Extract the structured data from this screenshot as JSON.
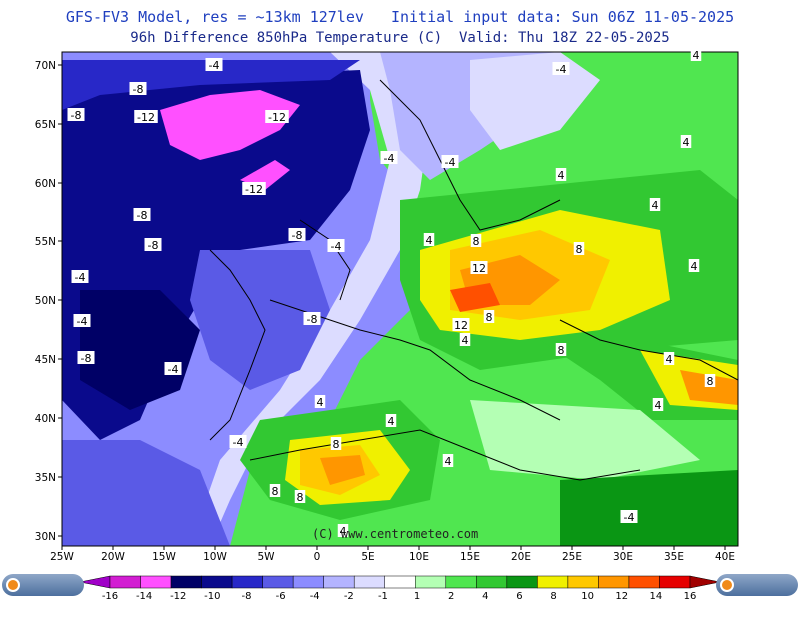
{
  "header": {
    "line1": "GFS-FV3 Model, res = ~13km 127lev   Initial input data: Sun 06Z 11-05-2025",
    "line2": "96h Difference 850hPa Temperature (C)  Valid: Thu 18Z 22-05-2025"
  },
  "credit": "(C) www.centrometeo.com",
  "brand": "centrometeo",
  "axes": {
    "lon": [
      "25W",
      "20W",
      "15W",
      "10W",
      "5W",
      "0",
      "5E",
      "10E",
      "15E",
      "20E",
      "25E",
      "30E",
      "35E",
      "40E"
    ],
    "lat": [
      "70N",
      "65N",
      "60N",
      "55N",
      "50N",
      "45N",
      "40N",
      "35N",
      "30N"
    ]
  },
  "contour_labels": [
    {
      "text": "-4"
    },
    {
      "text": "-8"
    },
    {
      "text": "-8"
    },
    {
      "text": "-12"
    },
    {
      "text": "-12"
    },
    {
      "text": "-12"
    },
    {
      "text": "-4"
    },
    {
      "text": "-4"
    },
    {
      "text": "-8"
    },
    {
      "text": "-8"
    },
    {
      "text": "-8"
    },
    {
      "text": "-4"
    },
    {
      "text": "-4"
    },
    {
      "text": "-4"
    },
    {
      "text": "-8"
    },
    {
      "text": "-8"
    },
    {
      "text": "-4"
    },
    {
      "text": "-4"
    },
    {
      "text": "-4"
    },
    {
      "text": "4"
    },
    {
      "text": "4"
    },
    {
      "text": "4"
    },
    {
      "text": "4"
    },
    {
      "text": "8"
    },
    {
      "text": "12"
    },
    {
      "text": "8"
    },
    {
      "text": "8"
    },
    {
      "text": "12"
    },
    {
      "text": "4"
    },
    {
      "text": "8"
    },
    {
      "text": "4"
    },
    {
      "text": "4"
    },
    {
      "text": "8"
    },
    {
      "text": "4"
    },
    {
      "text": "4"
    },
    {
      "text": "8"
    },
    {
      "text": "4"
    },
    {
      "text": "8"
    },
    {
      "text": "8"
    },
    {
      "text": "4"
    },
    {
      "text": "-4"
    },
    {
      "text": "4"
    },
    {
      "text": "4"
    }
  ],
  "colorbar": {
    "ticks": [
      "-16",
      "-14",
      "-12",
      "-10",
      "-8",
      "-6",
      "-4",
      "-2",
      "-1",
      "1",
      "2",
      "4",
      "6",
      "8",
      "10",
      "12",
      "14",
      "16"
    ],
    "colors": [
      "#a000c8",
      "#d21ed2",
      "#ff50ff",
      "#000066",
      "#0a0a8c",
      "#2828c8",
      "#5a5ae6",
      "#8c8cff",
      "#b4b4ff",
      "#dcdcff",
      "#ffffff",
      "#b4ffb4",
      "#50e650",
      "#32c832",
      "#0a9614",
      "#f0f000",
      "#ffc800",
      "#ff9600",
      "#ff5000",
      "#e60000",
      "#a00000"
    ]
  },
  "colors": {
    "ocean_dark": "#0a0a8c",
    "deep": "#000066",
    "cold": "#2828c8",
    "mid": "#5a5ae6",
    "light": "#8c8cff",
    "pale": "#b4b4ff",
    "paler": "#dcdcff",
    "warm1": "#b4ffb4",
    "warm2": "#50e650",
    "warm3": "#32c832",
    "warm4": "#0a9614",
    "yellow": "#f0f000",
    "amber": "#ffc800",
    "orange": "#ff9600",
    "red": "#ff5000",
    "magenta": "#ff50ff"
  }
}
